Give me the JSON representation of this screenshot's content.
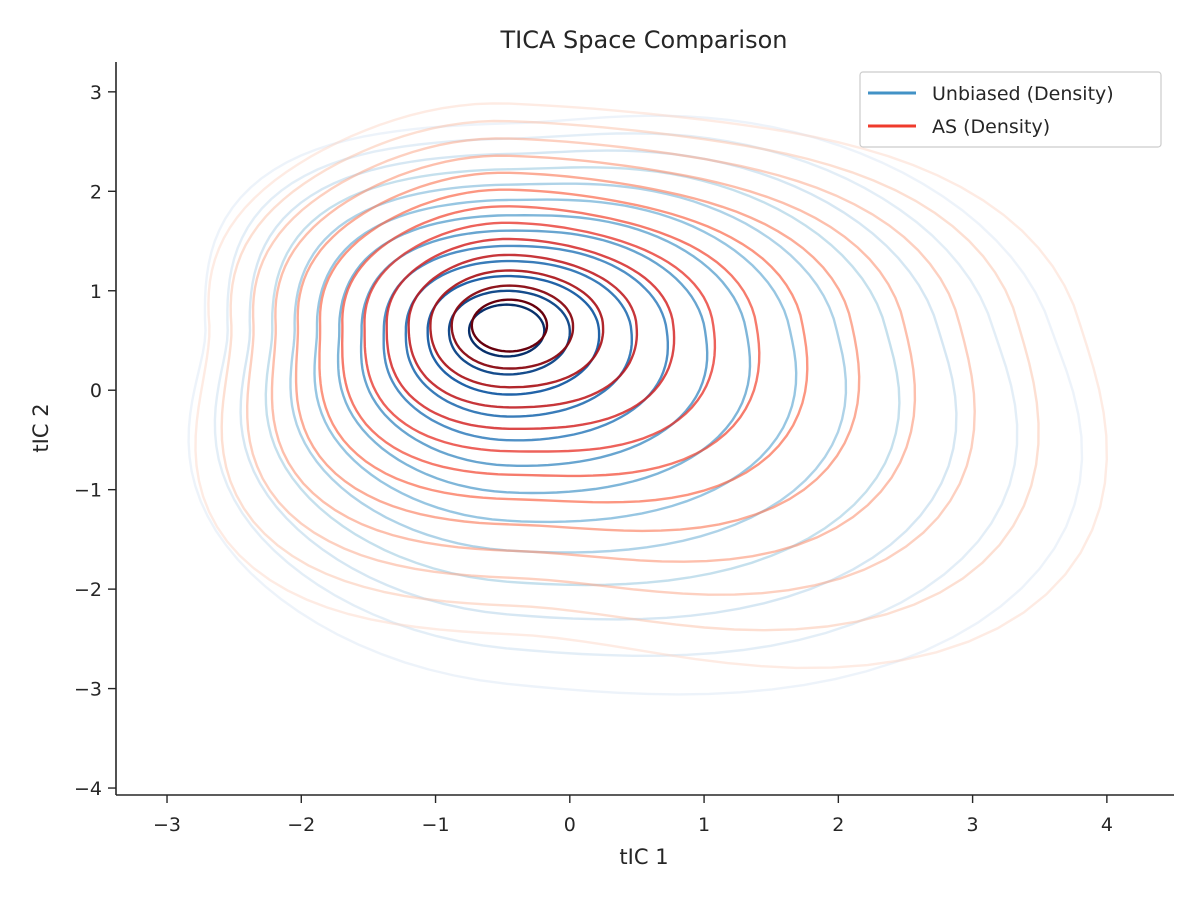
{
  "chart_data": {
    "type": "contour",
    "title": "TICA Space Comparison",
    "xlabel": "tIC 1",
    "ylabel": "tIC 2",
    "xlim": [
      -3.38,
      4.5
    ],
    "ylim": [
      -4.07,
      3.3
    ],
    "xticks": [
      -3,
      -2,
      -1,
      0,
      1,
      2,
      3,
      4
    ],
    "yticks": [
      -4,
      -3,
      -2,
      -1,
      0,
      1,
      2,
      3
    ],
    "xtick_labels": [
      "−3",
      "−2",
      "−1",
      "0",
      "1",
      "2",
      "3",
      "4"
    ],
    "ytick_labels": [
      "−4",
      "−3",
      "−2",
      "−1",
      "0",
      "1",
      "2",
      "3"
    ],
    "grid": false,
    "legend_position": "top-right",
    "series": [
      {
        "name": "Unbiased (Density)",
        "color": "#4292c6",
        "colormap": "Blues",
        "levels": 13,
        "peak": [
          -0.47,
          0.6
        ],
        "outer_extent": {
          "x": [
            -2.2,
            2.6
          ],
          "y": [
            -2.6,
            2.3
          ]
        }
      },
      {
        "name": "AS (Density)",
        "color": "#ef3b2c",
        "colormap": "Reds",
        "levels": 13,
        "peak": [
          -0.45,
          0.65
        ],
        "outer_extent": {
          "x": [
            -2.3,
            2.8
          ],
          "y": [
            -2.5,
            2.35
          ]
        }
      }
    ]
  }
}
